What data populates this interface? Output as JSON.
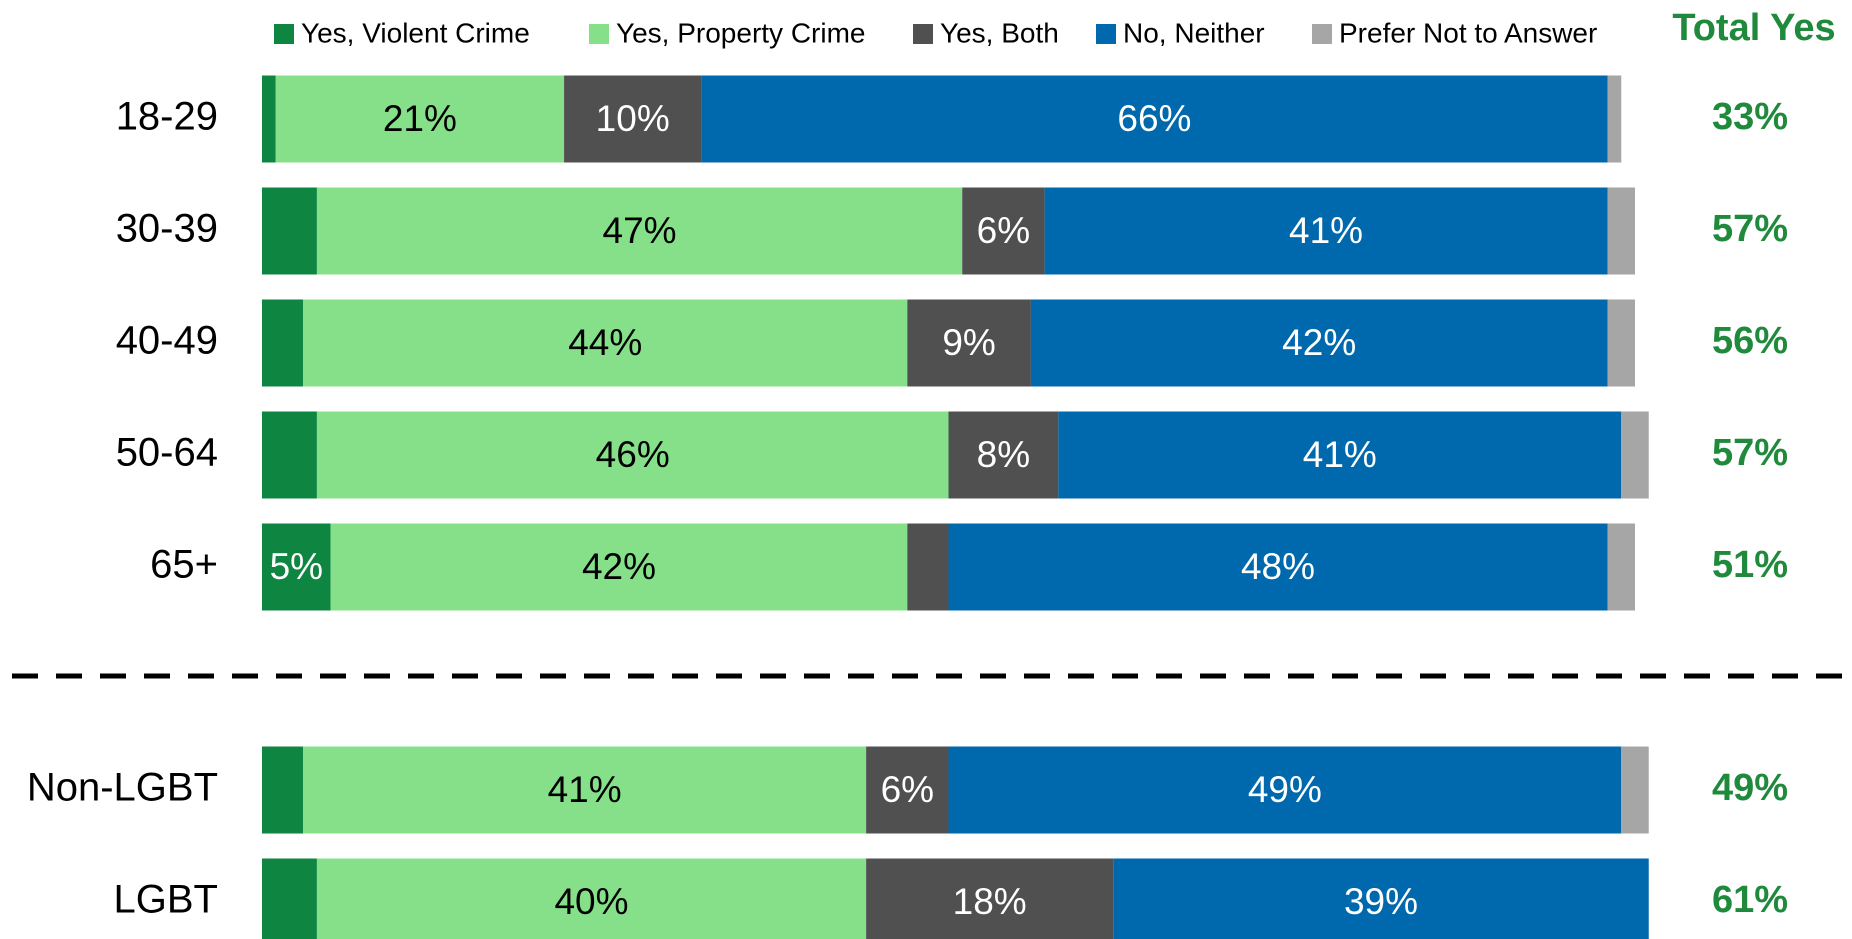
{
  "chart_data": {
    "type": "stacked_bar_horizontal",
    "categories": [
      "18-29",
      "30-39",
      "40-49",
      "50-64",
      "65+",
      "Non-LGBT",
      "LGBT"
    ],
    "xlim": [
      0,
      100
    ],
    "series": [
      {
        "name": "Yes, Violent Crime",
        "color": "#0e8540",
        "label_color": "#ffffff",
        "values": [
          1,
          4,
          3,
          4,
          5,
          3,
          4
        ],
        "value_labels": [
          null,
          null,
          null,
          null,
          "5%",
          null,
          null
        ]
      },
      {
        "name": "Yes, Property Crime",
        "color": "#86e08a",
        "label_color": "#000000",
        "values": [
          21,
          47,
          44,
          46,
          42,
          41,
          40
        ],
        "value_labels": [
          "21%",
          "47%",
          "44%",
          "46%",
          "42%",
          "41%",
          "40%"
        ]
      },
      {
        "name": "Yes, Both",
        "color": "#505050",
        "label_color": "#ffffff",
        "values": [
          10,
          6,
          9,
          8,
          3,
          6,
          18
        ],
        "value_labels": [
          "10%",
          "6%",
          "9%",
          "8%",
          null,
          "6%",
          "18%"
        ]
      },
      {
        "name": "No, Neither",
        "color": "#0068ad",
        "label_color": "#ffffff",
        "values": [
          66,
          41,
          42,
          41,
          48,
          49,
          39
        ],
        "value_labels": [
          "66%",
          "41%",
          "42%",
          "41%",
          "48%",
          "49%",
          "39%"
        ]
      },
      {
        "name": "Prefer Not to Answer",
        "color": "#a6a6a6",
        "label_color": "#000000",
        "values": [
          1,
          2,
          2,
          2,
          2,
          2,
          0
        ],
        "value_labels": [
          null,
          null,
          null,
          null,
          null,
          null,
          null
        ]
      }
    ],
    "total_yes": {
      "title": "Total Yes",
      "values": [
        33,
        57,
        56,
        57,
        51,
        49,
        61
      ],
      "value_labels": [
        "33%",
        "57%",
        "56%",
        "57%",
        "51%",
        "49%",
        "61%"
      ]
    }
  }
}
